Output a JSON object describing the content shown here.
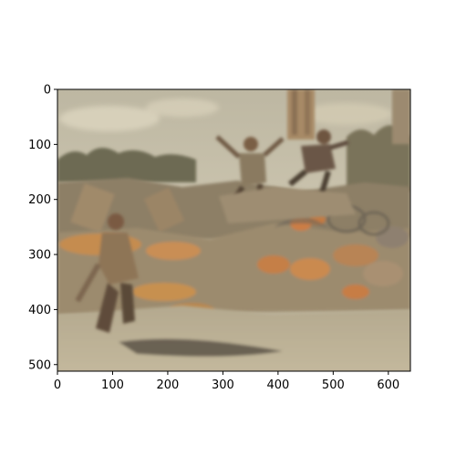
{
  "axes": {
    "x_ticks": [
      0,
      100,
      200,
      300,
      400,
      500,
      600
    ],
    "y_ticks": [
      0,
      100,
      200,
      300,
      400,
      500
    ],
    "x_range": [
      0,
      640
    ],
    "y_range": [
      512,
      0
    ],
    "image_width": 640,
    "image_height": 512
  },
  "image": {
    "description_colors": {
      "sky": "#c8c2ae",
      "ground": "#b9ae93",
      "rubble_orange": "#c98a4f",
      "dark_figure": "#5a4a38",
      "frame": "#000000"
    }
  }
}
